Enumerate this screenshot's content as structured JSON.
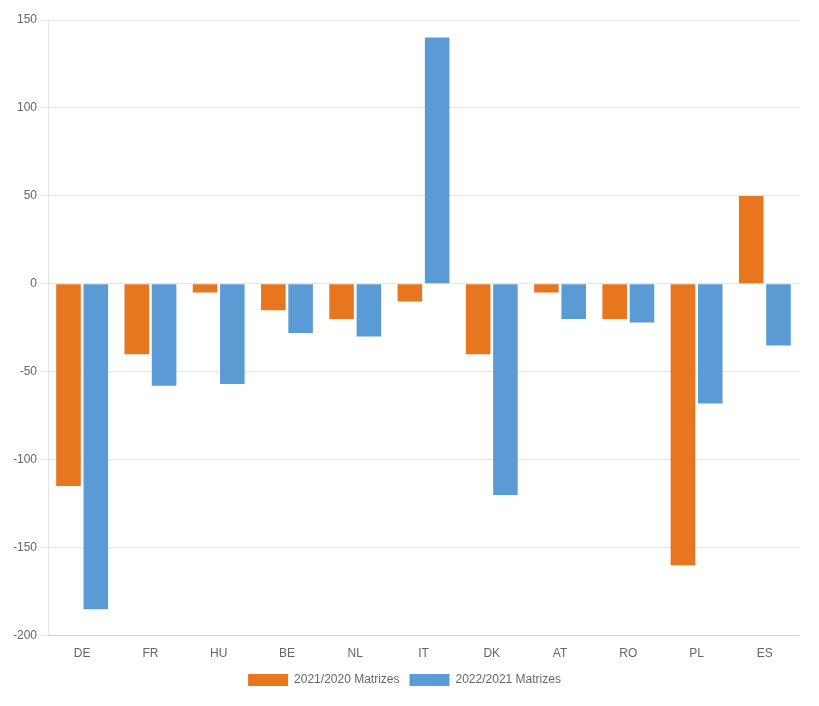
{
  "chart_data": {
    "type": "bar",
    "categories": [
      "DE",
      "FR",
      "HU",
      "BE",
      "NL",
      "IT",
      "DK",
      "AT",
      "RO",
      "PL",
      "ES"
    ],
    "series": [
      {
        "name": "2021/2020 Matrizes",
        "color": "#E8761E",
        "values": [
          -115,
          -40,
          -5,
          -15,
          -20,
          -10,
          -40,
          -5,
          -20,
          -160,
          50
        ]
      },
      {
        "name": "2022/2021 Matrizes",
        "color": "#5B9BD5",
        "values": [
          -185,
          -58,
          -57,
          -28,
          -30,
          140,
          -120,
          -20,
          -22,
          -68,
          -35
        ]
      }
    ],
    "ylim": [
      -200,
      150
    ],
    "yticks": [
      -200,
      -150,
      -100,
      -50,
      0,
      50,
      100,
      150
    ],
    "grid": true,
    "legend": "bottom"
  }
}
